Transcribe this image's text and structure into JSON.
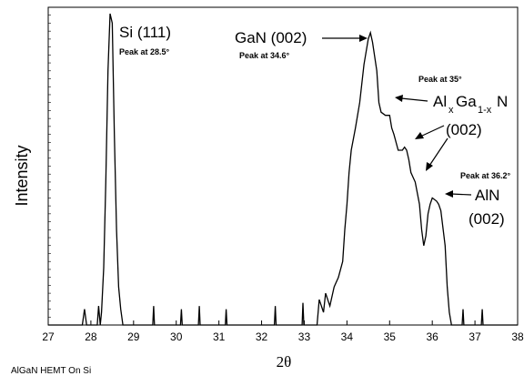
{
  "chart_data": {
    "type": "line",
    "title": "",
    "xlabel": "2θ",
    "ylabel": "Intensity",
    "xlim": [
      27,
      38
    ],
    "ylim": [
      0,
      1
    ],
    "x_ticks": [
      "27",
      "28",
      "29",
      "30",
      "31",
      "32",
      "33",
      "34",
      "35",
      "36",
      "37",
      "38"
    ],
    "grid": false,
    "footnote": "AlGaN HEMT On Si",
    "annotations": {
      "si": {
        "label": "Si (111)",
        "peak_text": "Peak at 28.5°"
      },
      "gan": {
        "label": "GaN (002)",
        "peak_text": "Peak at 34.6°"
      },
      "algan": {
        "label_main": "Al",
        "sub_x": "x",
        "label_ga": "Ga",
        "sub_1x": "1-x",
        "label_n": "N",
        "label_plane": "(002)",
        "peak_text": "Peak at 35°"
      },
      "aln": {
        "label": "AlN",
        "label_plane": "(002)",
        "peak_text": "Peak at 36.2°"
      }
    },
    "series": [
      {
        "values": [
          [
            27.0,
            0.0
          ],
          [
            27.8,
            0.0
          ],
          [
            27.85,
            0.05
          ],
          [
            27.9,
            0.0
          ],
          [
            28.15,
            0.0
          ],
          [
            28.18,
            0.06
          ],
          [
            28.22,
            0.0
          ],
          [
            28.25,
            0.04
          ],
          [
            28.3,
            0.18
          ],
          [
            28.35,
            0.45
          ],
          [
            28.4,
            0.8
          ],
          [
            28.45,
            0.98
          ],
          [
            28.5,
            0.95
          ],
          [
            28.55,
            0.6
          ],
          [
            28.6,
            0.3
          ],
          [
            28.65,
            0.12
          ],
          [
            28.7,
            0.05
          ],
          [
            28.75,
            0.0
          ],
          [
            29.45,
            0.0
          ],
          [
            29.47,
            0.06
          ],
          [
            29.49,
            0.0
          ],
          [
            30.1,
            0.0
          ],
          [
            30.12,
            0.05
          ],
          [
            30.14,
            0.0
          ],
          [
            30.52,
            0.0
          ],
          [
            30.54,
            0.06
          ],
          [
            30.56,
            0.0
          ],
          [
            31.15,
            0.0
          ],
          [
            31.17,
            0.05
          ],
          [
            31.19,
            0.0
          ],
          [
            32.3,
            0.0
          ],
          [
            32.32,
            0.06
          ],
          [
            32.34,
            0.0
          ],
          [
            32.95,
            0.0
          ],
          [
            32.97,
            0.07
          ],
          [
            32.99,
            0.0
          ],
          [
            33.3,
            0.0
          ],
          [
            33.35,
            0.08
          ],
          [
            33.45,
            0.04
          ],
          [
            33.5,
            0.1
          ],
          [
            33.6,
            0.06
          ],
          [
            33.7,
            0.12
          ],
          [
            33.8,
            0.15
          ],
          [
            33.9,
            0.2
          ],
          [
            33.95,
            0.3
          ],
          [
            34.0,
            0.38
          ],
          [
            34.05,
            0.48
          ],
          [
            34.1,
            0.55
          ],
          [
            34.2,
            0.62
          ],
          [
            34.3,
            0.7
          ],
          [
            34.4,
            0.82
          ],
          [
            34.5,
            0.9
          ],
          [
            34.55,
            0.92
          ],
          [
            34.6,
            0.89
          ],
          [
            34.7,
            0.8
          ],
          [
            34.75,
            0.7
          ],
          [
            34.8,
            0.67
          ],
          [
            34.9,
            0.66
          ],
          [
            35.0,
            0.66
          ],
          [
            35.05,
            0.62
          ],
          [
            35.1,
            0.6
          ],
          [
            35.2,
            0.55
          ],
          [
            35.3,
            0.55
          ],
          [
            35.35,
            0.56
          ],
          [
            35.4,
            0.55
          ],
          [
            35.45,
            0.52
          ],
          [
            35.5,
            0.48
          ],
          [
            35.6,
            0.45
          ],
          [
            35.7,
            0.38
          ],
          [
            35.75,
            0.3
          ],
          [
            35.8,
            0.25
          ],
          [
            35.85,
            0.28
          ],
          [
            35.9,
            0.35
          ],
          [
            35.95,
            0.38
          ],
          [
            36.0,
            0.4
          ],
          [
            36.1,
            0.39
          ],
          [
            36.15,
            0.38
          ],
          [
            36.2,
            0.36
          ],
          [
            36.3,
            0.25
          ],
          [
            36.35,
            0.12
          ],
          [
            36.4,
            0.04
          ],
          [
            36.45,
            0.0
          ],
          [
            36.55,
            0.0
          ],
          [
            36.7,
            0.0
          ],
          [
            36.72,
            0.05
          ],
          [
            36.74,
            0.0
          ],
          [
            37.15,
            0.0
          ],
          [
            37.17,
            0.05
          ],
          [
            37.19,
            0.0
          ],
          [
            38.0,
            0.0
          ]
        ]
      }
    ]
  }
}
